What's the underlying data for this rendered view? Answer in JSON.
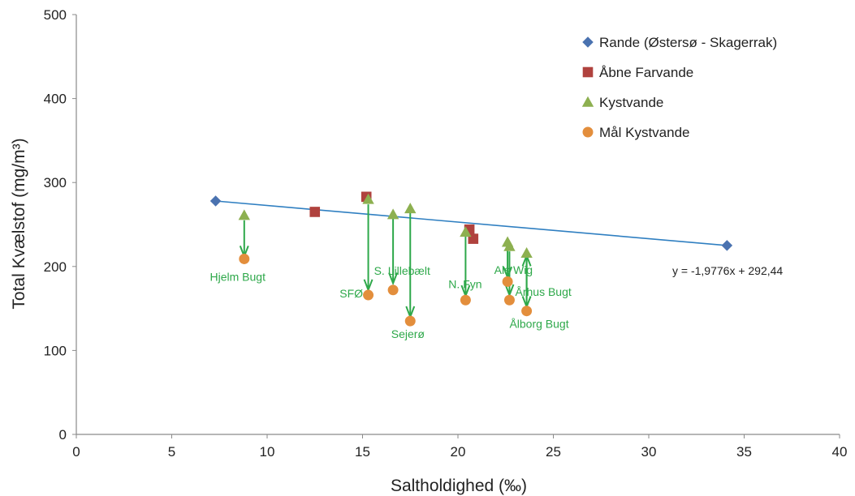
{
  "chart_data": {
    "type": "scatter",
    "xlabel": "Saltholdighed (‰)",
    "ylabel": "Total Kvælstof (mg/m³)",
    "xlim": [
      0,
      40
    ],
    "ylim": [
      0,
      500
    ],
    "xticks": [
      "0",
      "5",
      "10",
      "15",
      "20",
      "25",
      "30",
      "35",
      "40"
    ],
    "yticks": [
      "0",
      "100",
      "200",
      "300",
      "400",
      "500"
    ],
    "grid": false,
    "legend_position": "top-right",
    "series": [
      {
        "name": "Rande (Østersø - Skagerrak)",
        "marker": "diamond",
        "color": "#4a72b0",
        "points": [
          [
            7.3,
            278
          ],
          [
            34.1,
            225
          ]
        ]
      },
      {
        "name": "Åbne Farvande",
        "marker": "square",
        "color": "#b0423e",
        "points": [
          [
            12.5,
            265
          ],
          [
            15.2,
            283
          ],
          [
            20.6,
            244
          ],
          [
            20.8,
            233
          ]
        ]
      },
      {
        "name": "Kystvande",
        "marker": "triangle",
        "color": "#8db050",
        "points": [
          [
            8.8,
            261
          ],
          [
            15.3,
            280
          ],
          [
            16.6,
            262
          ],
          [
            17.5,
            269
          ],
          [
            20.4,
            241
          ],
          [
            22.6,
            229
          ],
          [
            22.7,
            224
          ],
          [
            23.6,
            216
          ]
        ]
      },
      {
        "name": "Mål Kystvande",
        "marker": "circle",
        "color": "#e38e3c",
        "points": [
          [
            8.8,
            209
          ],
          [
            15.3,
            166
          ],
          [
            16.6,
            172
          ],
          [
            17.5,
            135
          ],
          [
            20.4,
            160
          ],
          [
            22.6,
            182
          ],
          [
            22.7,
            160
          ],
          [
            23.6,
            147
          ]
        ]
      }
    ],
    "trendline": {
      "x": [
        7.3,
        34.1
      ],
      "y": [
        278,
        225
      ],
      "color": "#2f7fc1",
      "equation": "y = -1,9776x + 292,44"
    },
    "arrows": [
      {
        "x": 8.8,
        "from": 255,
        "to": 212
      },
      {
        "x": 15.3,
        "from": 274,
        "to": 172
      },
      {
        "x": 16.6,
        "from": 258,
        "to": 180
      },
      {
        "x": 17.5,
        "from": 264,
        "to": 140
      },
      {
        "x": 20.4,
        "from": 236,
        "to": 165
      },
      {
        "x": 22.6,
        "from": 224,
        "to": 187
      },
      {
        "x": 22.7,
        "from": 218,
        "to": 166
      },
      {
        "x": 23.6,
        "from": 211,
        "to": 152
      },
      {
        "x": 23.6,
        "from": 160,
        "to": 213
      }
    ],
    "annotations": [
      {
        "text": "Hjelm Bugt",
        "x": 7.0,
        "y": 183
      },
      {
        "text": "SFØ",
        "x": 13.8,
        "y": 163
      },
      {
        "text": "S. Lillebælt",
        "x": 15.6,
        "y": 190
      },
      {
        "text": "Sejerø",
        "x": 16.5,
        "y": 115
      },
      {
        "text": "N. Fyn",
        "x": 19.5,
        "y": 174
      },
      {
        "text": "Als Wig",
        "x": 21.9,
        "y": 191
      },
      {
        "text": "Århus Bugt",
        "x": 23.0,
        "y": 165
      },
      {
        "text": "Ålborg Bugt",
        "x": 22.7,
        "y": 127
      }
    ]
  }
}
